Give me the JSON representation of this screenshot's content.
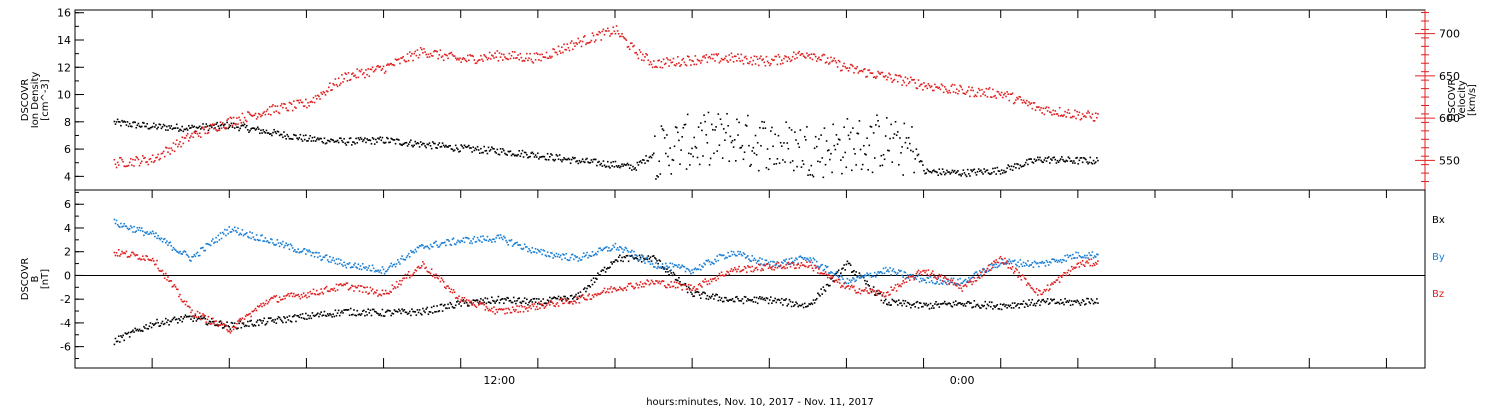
{
  "chart_data": [
    {
      "type": "scatter",
      "panel": "plasma",
      "left_axis": {
        "label_lines": [
          "DSCOVR",
          "Ion Density",
          "[cm^-3]"
        ],
        "ticks": [
          4,
          6,
          8,
          10,
          12,
          14,
          16
        ],
        "ylim": [
          3,
          16.2
        ],
        "color": "#000000"
      },
      "right_axis": {
        "label_lines": [
          "DSCOVR",
          "Velocity",
          "[km/s]"
        ],
        "ticks": [
          550,
          600,
          650,
          700
        ],
        "ylim": [
          515,
          728
        ],
        "color": "#e02020"
      },
      "series": [
        {
          "axis": "left",
          "color": "#000000",
          "points": [
            [
              -10,
              8.0
            ],
            [
              -9,
              7.7
            ],
            [
              -8,
              7.6
            ],
            [
              -7,
              7.8
            ],
            [
              -6,
              7.3
            ],
            [
              -5,
              6.8
            ],
            [
              -4,
              6.6
            ],
            [
              -3,
              6.7
            ],
            [
              -2,
              6.4
            ],
            [
              -1,
              6.1
            ],
            [
              0,
              5.9
            ],
            [
              1,
              5.6
            ],
            [
              2,
              5.2
            ],
            [
              3,
              4.9
            ],
            [
              3.5,
              4.7
            ],
            [
              4,
              5.8
            ],
            [
              5,
              6.5
            ],
            [
              6,
              6.8
            ],
            [
              7,
              6.4
            ],
            [
              8,
              6.0
            ],
            [
              9,
              6.3
            ],
            [
              10,
              6.5
            ],
            [
              10.8,
              6.0
            ],
            [
              11,
              4.4
            ],
            [
              12,
              4.3
            ],
            [
              13,
              4.5
            ],
            [
              14,
              5.3
            ],
            [
              15,
              5.2
            ],
            [
              15.5,
              5.2
            ]
          ]
        },
        {
          "axis": "right",
          "color": "#e02020",
          "points": [
            [
              -10,
              548
            ],
            [
              -9,
              552
            ],
            [
              -8,
              580
            ],
            [
              -7,
              597
            ],
            [
              -6,
              610
            ],
            [
              -5,
              618
            ],
            [
              -4,
              650
            ],
            [
              -3,
              660
            ],
            [
              -2,
              680
            ],
            [
              -1,
              670
            ],
            [
              0,
              675
            ],
            [
              1,
              672
            ],
            [
              2,
              690
            ],
            [
              3,
              705
            ],
            [
              3.5,
              680
            ],
            [
              4,
              665
            ],
            [
              5,
              670
            ],
            [
              6,
              672
            ],
            [
              7,
              668
            ],
            [
              8,
              678
            ],
            [
              9,
              660
            ],
            [
              10,
              650
            ],
            [
              11,
              640
            ],
            [
              12,
              633
            ],
            [
              13,
              630
            ],
            [
              14,
              612
            ],
            [
              15,
              605
            ],
            [
              15.5,
              602
            ]
          ]
        }
      ]
    },
    {
      "type": "scatter",
      "panel": "magnetic",
      "left_axis": {
        "label_lines": [
          "DSCOVR",
          "B",
          "[nT]"
        ],
        "ticks": [
          -6,
          -4,
          -2,
          0,
          2,
          4,
          6
        ],
        "ylim": [
          -7.8,
          7.2
        ]
      },
      "zero_line": true,
      "legend": [
        "Bx",
        "By",
        "Bz"
      ],
      "legend_colors": [
        "#000000",
        "#1a7fd4",
        "#e02020"
      ],
      "series": [
        {
          "name": "Bx",
          "color": "#000000",
          "points": [
            [
              -10,
              -5.5
            ],
            [
              -9,
              -4.0
            ],
            [
              -8,
              -3.5
            ],
            [
              -7,
              -4.2
            ],
            [
              -6,
              -3.8
            ],
            [
              -5,
              -3.4
            ],
            [
              -4,
              -3.0
            ],
            [
              -3,
              -3.1
            ],
            [
              -2,
              -3.0
            ],
            [
              -1,
              -2.3
            ],
            [
              0,
              -2.0
            ],
            [
              1,
              -2.2
            ],
            [
              2,
              -1.8
            ],
            [
              3,
              1.5
            ],
            [
              4,
              1.5
            ],
            [
              5,
              -1.5
            ],
            [
              6,
              -2.0
            ],
            [
              7,
              -2.0
            ],
            [
              8,
              -2.5
            ],
            [
              9,
              1.0
            ],
            [
              10,
              -2.2
            ],
            [
              11,
              -2.5
            ],
            [
              12,
              -2.3
            ],
            [
              13,
              -2.5
            ],
            [
              14,
              -2.2
            ],
            [
              15,
              -2.2
            ],
            [
              15.5,
              -2.0
            ]
          ]
        },
        {
          "name": "By",
          "color": "#1a7fd4",
          "points": [
            [
              -10,
              4.5
            ],
            [
              -9,
              3.5
            ],
            [
              -8,
              1.5
            ],
            [
              -7,
              4.0
            ],
            [
              -6,
              3.0
            ],
            [
              -5,
              2.0
            ],
            [
              -4,
              1.0
            ],
            [
              -3,
              0.5
            ],
            [
              -2,
              2.5
            ],
            [
              -1,
              3.0
            ],
            [
              0,
              3.2
            ],
            [
              1,
              2.0
            ],
            [
              2,
              1.5
            ],
            [
              3,
              2.5
            ],
            [
              4,
              1.0
            ],
            [
              5,
              0.5
            ],
            [
              6,
              2.0
            ],
            [
              7,
              1.0
            ],
            [
              8,
              1.5
            ],
            [
              9,
              -0.5
            ],
            [
              10,
              0.5
            ],
            [
              11,
              -0.3
            ],
            [
              12,
              -0.5
            ],
            [
              13,
              1.2
            ],
            [
              14,
              1.0
            ],
            [
              15,
              1.8
            ],
            [
              15.5,
              1.8
            ]
          ]
        },
        {
          "name": "Bz",
          "color": "#e02020",
          "points": [
            [
              -10,
              2.0
            ],
            [
              -9,
              1.5
            ],
            [
              -8,
              -3.0
            ],
            [
              -7,
              -4.5
            ],
            [
              -6,
              -2.0
            ],
            [
              -5,
              -1.5
            ],
            [
              -4,
              -0.8
            ],
            [
              -3,
              -1.5
            ],
            [
              -2,
              1.0
            ],
            [
              -1,
              -2.0
            ],
            [
              0,
              -3.0
            ],
            [
              1,
              -2.5
            ],
            [
              2,
              -2.0
            ],
            [
              3,
              -1.0
            ],
            [
              4,
              -0.5
            ],
            [
              5,
              -1.0
            ],
            [
              6,
              0.5
            ],
            [
              7,
              0.8
            ],
            [
              8,
              1.0
            ],
            [
              9,
              -1.0
            ],
            [
              10,
              -1.5
            ],
            [
              11,
              0.5
            ],
            [
              12,
              -1.0
            ],
            [
              13,
              1.5
            ],
            [
              14,
              -1.5
            ],
            [
              15,
              1.0
            ],
            [
              15.5,
              1.2
            ]
          ]
        }
      ]
    }
  ],
  "x_axis": {
    "range_hours": [
      -11,
      24
    ],
    "labeled_ticks": [
      {
        "hour": 0,
        "label": "12:00"
      },
      {
        "hour": 12,
        "label": "0:00"
      }
    ],
    "title": "hours:minutes, Nov. 10, 2017 - Nov. 11, 2017"
  },
  "colors": {
    "axis": "#000000",
    "velocity": "#e02020",
    "by": "#1a7fd4"
  }
}
